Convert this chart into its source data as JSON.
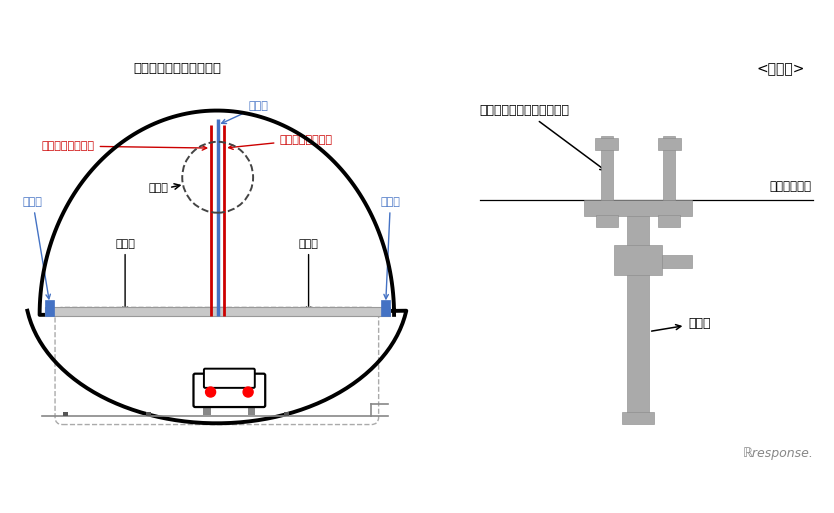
{
  "bg_color": "#ffffff",
  "left_panel": {
    "title": "神戸長田トンネル断面図",
    "labels": {
      "hanger_left": "吊り材",
      "wire_left": "落下防止ワイヤー",
      "hanger_center_top": "吊り材",
      "enlarge": "拡大図",
      "wire_right": "落下防止ワイヤー",
      "hanger_right": "吊り材",
      "ceiling_left": "天井板",
      "ceiling_right": "天井板"
    },
    "colors": {
      "tunnel_outline": "#000000",
      "ceiling_plate": "#b0b0b0",
      "hanger_blue": "#4472C4",
      "wire_red": "#CC0000",
      "wire_blue": "#4472C4",
      "label_blue": "#4472C4",
      "label_red": "#CC0000",
      "car_outline": "#000000",
      "car_taillight": "#FF0000"
    }
  },
  "right_panel": {
    "title": "<拡大図>",
    "labels": {
      "bolt": "吊り材支持部材定着ボルト",
      "tunnel_ceiling": "トンネル天井",
      "hanger": "吊り材"
    },
    "colors": {
      "gray": "#aaaaaa",
      "line": "#000000"
    }
  }
}
